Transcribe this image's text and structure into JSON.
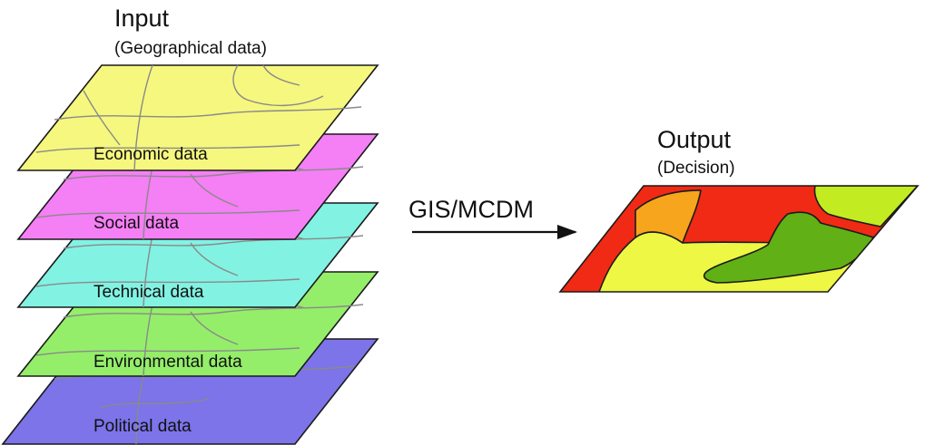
{
  "input": {
    "title": "Input",
    "subtitle": "(Geographical data)"
  },
  "layers": [
    {
      "label": "Economic data",
      "color": "#F6F77E"
    },
    {
      "label": "Social data",
      "color": "#F57FF5"
    },
    {
      "label": "Technical data",
      "color": "#82F2E3"
    },
    {
      "label": "Environmental data",
      "color": "#94EE6A"
    },
    {
      "label": "Political data",
      "color": "#7C74E8"
    }
  ],
  "arrow": {
    "label": "GIS/MCDM"
  },
  "output": {
    "title": "Output",
    "subtitle": "(Decision)",
    "colors": {
      "red": "#F02A14",
      "orange": "#F6A51C",
      "yellow": "#EDF744",
      "lime": "#C2EC21",
      "green": "#61B015"
    }
  }
}
